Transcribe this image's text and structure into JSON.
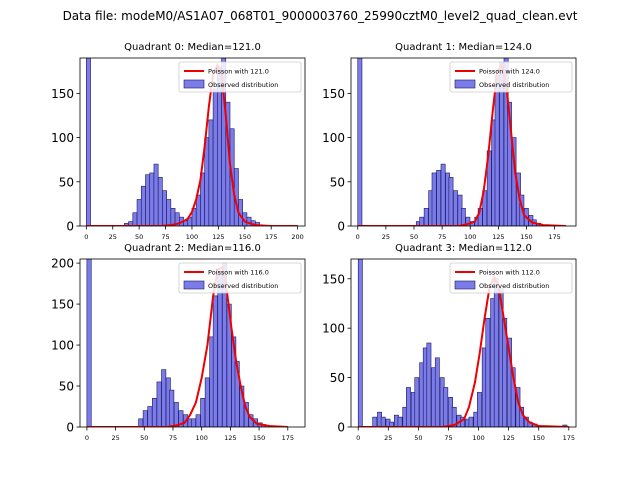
{
  "figure": {
    "suptitle": "Data file: modeM0/AS1A07_068T01_9000003760_25990cztM0_level2_quad_clean.evt"
  },
  "colors": {
    "bar_fill": "#7b7bea",
    "bar_edge": "#1a1a5e",
    "poisson_line": "#ee0000",
    "axis": "#000000"
  },
  "chart_data": [
    {
      "type": "bar",
      "title": "Quadrant 0: Median=121.0",
      "median": 121.0,
      "xlim": [
        -6,
        207
      ],
      "ylim": [
        0,
        190
      ],
      "xticks": [
        0,
        25,
        50,
        75,
        100,
        125,
        150,
        175,
        200
      ],
      "yticks": [
        0,
        50,
        100,
        150
      ],
      "legend": {
        "location": "top-right",
        "entries": [
          "Poisson with 121.0",
          "Observed distribution"
        ]
      },
      "bin_width": 4,
      "observed": [
        [
          0,
          190
        ],
        [
          36,
          3
        ],
        [
          40,
          5
        ],
        [
          44,
          15
        ],
        [
          48,
          30
        ],
        [
          52,
          45
        ],
        [
          56,
          58
        ],
        [
          60,
          60
        ],
        [
          64,
          70
        ],
        [
          68,
          55
        ],
        [
          72,
          40
        ],
        [
          76,
          30
        ],
        [
          80,
          20
        ],
        [
          84,
          15
        ],
        [
          88,
          10
        ],
        [
          92,
          6
        ],
        [
          96,
          10
        ],
        [
          100,
          20
        ],
        [
          104,
          35
        ],
        [
          108,
          60
        ],
        [
          112,
          100
        ],
        [
          116,
          120
        ],
        [
          120,
          155
        ],
        [
          124,
          180
        ],
        [
          128,
          190
        ],
        [
          132,
          140
        ],
        [
          136,
          110
        ],
        [
          140,
          65
        ],
        [
          144,
          30
        ],
        [
          148,
          15
        ],
        [
          152,
          10
        ],
        [
          156,
          6
        ],
        [
          160,
          4
        ],
        [
          164,
          1
        ]
      ],
      "poisson": [
        [
          0,
          0
        ],
        [
          70,
          0
        ],
        [
          80,
          1
        ],
        [
          88,
          3
        ],
        [
          96,
          8
        ],
        [
          100,
          16
        ],
        [
          104,
          30
        ],
        [
          108,
          52
        ],
        [
          112,
          90
        ],
        [
          116,
          135
        ],
        [
          120,
          172
        ],
        [
          124,
          182
        ],
        [
          128,
          172
        ],
        [
          132,
          125
        ],
        [
          136,
          70
        ],
        [
          140,
          35
        ],
        [
          144,
          15
        ],
        [
          150,
          5
        ],
        [
          160,
          1
        ],
        [
          175,
          0
        ],
        [
          200,
          0
        ]
      ]
    },
    {
      "type": "bar",
      "title": "Quadrant 1: Median=124.0",
      "median": 124.0,
      "xlim": [
        -6,
        194
      ],
      "ylim": [
        0,
        190
      ],
      "xticks": [
        0,
        25,
        50,
        75,
        100,
        125,
        150,
        175
      ],
      "yticks": [
        0,
        50,
        100,
        150
      ],
      "legend": {
        "location": "top-right",
        "entries": [
          "Poisson with 124.0",
          "Observed distribution"
        ]
      },
      "bin_width": 3.75,
      "observed": [
        [
          0,
          190
        ],
        [
          52,
          5
        ],
        [
          55,
          10
        ],
        [
          59,
          20
        ],
        [
          63,
          40
        ],
        [
          66,
          60
        ],
        [
          70,
          63
        ],
        [
          74,
          70
        ],
        [
          78,
          60
        ],
        [
          81,
          55
        ],
        [
          85,
          40
        ],
        [
          89,
          35
        ],
        [
          92,
          20
        ],
        [
          96,
          10
        ],
        [
          100,
          5
        ],
        [
          104,
          10
        ],
        [
          107,
          20
        ],
        [
          111,
          40
        ],
        [
          115,
          85
        ],
        [
          119,
          120
        ],
        [
          122,
          170
        ],
        [
          126,
          185
        ],
        [
          130,
          190
        ],
        [
          133,
          140
        ],
        [
          137,
          100
        ],
        [
          141,
          60
        ],
        [
          144,
          35
        ],
        [
          148,
          20
        ],
        [
          152,
          12
        ],
        [
          155,
          7
        ],
        [
          159,
          3
        ]
      ],
      "poisson": [
        [
          0,
          0
        ],
        [
          90,
          0
        ],
        [
          97,
          2
        ],
        [
          104,
          5
        ],
        [
          108,
          15
        ],
        [
          112,
          40
        ],
        [
          116,
          80
        ],
        [
          120,
          130
        ],
        [
          124,
          175
        ],
        [
          128,
          182
        ],
        [
          132,
          160
        ],
        [
          136,
          110
        ],
        [
          140,
          60
        ],
        [
          144,
          30
        ],
        [
          148,
          12
        ],
        [
          155,
          4
        ],
        [
          165,
          1
        ],
        [
          185,
          0
        ]
      ]
    },
    {
      "type": "bar",
      "title": "Quadrant 2: Median=116.0",
      "median": 116.0,
      "xlim": [
        -6,
        190
      ],
      "ylim": [
        0,
        205
      ],
      "xticks": [
        0,
        25,
        50,
        75,
        100,
        125,
        150,
        175
      ],
      "yticks": [
        0,
        50,
        100,
        150,
        200
      ],
      "legend": {
        "location": "top-right",
        "entries": [
          "Poisson with 116.0",
          "Observed distribution"
        ]
      },
      "bin_width": 3.8,
      "observed": [
        [
          0,
          205
        ],
        [
          45,
          10
        ],
        [
          49,
          20
        ],
        [
          53,
          25
        ],
        [
          57,
          35
        ],
        [
          61,
          55
        ],
        [
          65,
          70
        ],
        [
          69,
          60
        ],
        [
          72,
          45
        ],
        [
          76,
          30
        ],
        [
          80,
          20
        ],
        [
          84,
          15
        ],
        [
          88,
          10
        ],
        [
          91,
          10
        ],
        [
          95,
          15
        ],
        [
          99,
          35
        ],
        [
          103,
          60
        ],
        [
          107,
          110
        ],
        [
          110,
          160
        ],
        [
          114,
          190
        ],
        [
          118,
          200
        ],
        [
          122,
          150
        ],
        [
          126,
          110
        ],
        [
          129,
          80
        ],
        [
          133,
          50
        ],
        [
          137,
          30
        ],
        [
          141,
          15
        ],
        [
          145,
          10
        ],
        [
          149,
          5
        ],
        [
          152,
          3
        ]
      ],
      "poisson": [
        [
          0,
          0
        ],
        [
          70,
          0
        ],
        [
          78,
          2
        ],
        [
          85,
          5
        ],
        [
          90,
          15
        ],
        [
          95,
          30
        ],
        [
          100,
          60
        ],
        [
          105,
          100
        ],
        [
          110,
          160
        ],
        [
          114,
          192
        ],
        [
          118,
          195
        ],
        [
          122,
          165
        ],
        [
          126,
          120
        ],
        [
          130,
          80
        ],
        [
          134,
          50
        ],
        [
          138,
          25
        ],
        [
          142,
          12
        ],
        [
          148,
          4
        ],
        [
          160,
          1
        ],
        [
          175,
          0
        ]
      ]
    },
    {
      "type": "bar",
      "title": "Quadrant 3: Median=112.0",
      "median": 112.0,
      "xlim": [
        -6,
        181
      ],
      "ylim": [
        0,
        170
      ],
      "xticks": [
        0,
        25,
        50,
        75,
        100,
        125,
        150,
        175
      ],
      "yticks": [
        0,
        50,
        100,
        150
      ],
      "legend": {
        "location": "top-right",
        "entries": [
          "Poisson with 112.0",
          "Observed distribution"
        ]
      },
      "bin_width": 3.5,
      "observed": [
        [
          0,
          170
        ],
        [
          12,
          10
        ],
        [
          16,
          15
        ],
        [
          19,
          10
        ],
        [
          23,
          8
        ],
        [
          26,
          5
        ],
        [
          30,
          12
        ],
        [
          33,
          10
        ],
        [
          37,
          20
        ],
        [
          40,
          40
        ],
        [
          44,
          35
        ],
        [
          47,
          50
        ],
        [
          51,
          65
        ],
        [
          54,
          80
        ],
        [
          57,
          85
        ],
        [
          61,
          60
        ],
        [
          64,
          70
        ],
        [
          68,
          50
        ],
        [
          71,
          40
        ],
        [
          75,
          30
        ],
        [
          78,
          20
        ],
        [
          82,
          12
        ],
        [
          85,
          10
        ],
        [
          89,
          8
        ],
        [
          92,
          10
        ],
        [
          96,
          15
        ],
        [
          99,
          35
        ],
        [
          103,
          80
        ],
        [
          106,
          110
        ],
        [
          110,
          130
        ],
        [
          113,
          150
        ],
        [
          117,
          140
        ],
        [
          120,
          110
        ],
        [
          124,
          90
        ],
        [
          127,
          60
        ],
        [
          131,
          40
        ],
        [
          134,
          20
        ],
        [
          138,
          10
        ],
        [
          141,
          5
        ],
        [
          145,
          3
        ],
        [
          170,
          2
        ]
      ],
      "poisson": [
        [
          0,
          0
        ],
        [
          70,
          0
        ],
        [
          80,
          2
        ],
        [
          88,
          8
        ],
        [
          92,
          20
        ],
        [
          97,
          45
        ],
        [
          101,
          75
        ],
        [
          105,
          110
        ],
        [
          109,
          140
        ],
        [
          113,
          152
        ],
        [
          117,
          140
        ],
        [
          121,
          110
        ],
        [
          125,
          80
        ],
        [
          129,
          50
        ],
        [
          133,
          25
        ],
        [
          137,
          12
        ],
        [
          142,
          5
        ],
        [
          150,
          1
        ],
        [
          175,
          0
        ]
      ]
    }
  ]
}
